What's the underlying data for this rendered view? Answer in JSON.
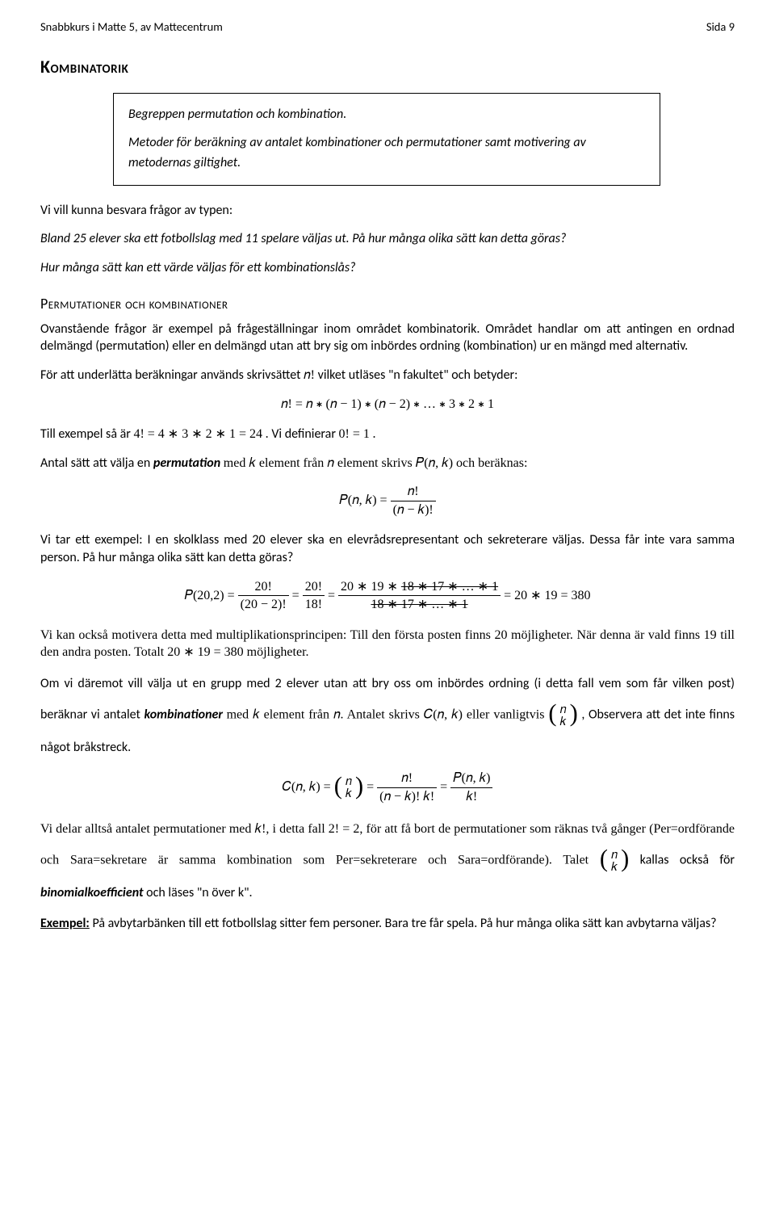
{
  "header": {
    "left": "Snabbkurs i Matte 5, av Mattecentrum",
    "right": "Sida 9"
  },
  "title": "Kombinatorik",
  "box": {
    "line1": "Begreppen permutation och kombination.",
    "line2": "Metoder för beräkning av antalet kombinationer och permutationer samt motivering av metodernas giltighet."
  },
  "intro1": "Vi vill kunna besvara frågor av typen:",
  "intro2": "Bland 25 elever ska ett fotbollslag med 11 spelare väljas ut. På hur många olika sätt kan detta göras?",
  "intro3": "Hur många sätt kan ett värde väljas för ett kombinationslås?",
  "h2": "Permutationer och kombinationer",
  "p1": "Ovanstående frågor är exempel på frågeställningar inom området kombinatorik. Området handlar om att antingen en ordnad delmängd (permutation) eller en delmängd utan att bry sig om inbördes ordning (kombination) ur en mängd med alternativ.",
  "p2a": "För att underlätta beräkningar används skrivsättet ",
  "p2b": " vilket utläses \"n fakultet\" och betyder:",
  "eq1": "𝑛! = 𝑛 ∗ (𝑛 − 1) ∗ (𝑛 − 2) ∗ … ∗ 3 ∗ 2 ∗ 1",
  "p3a": "Till exempel så är ",
  "p3b": ". Vi definierar ",
  "p3c": ".",
  "ex_4fac": "4! = 4 ∗ 3 ∗ 2 ∗ 1 = 24",
  "ex_0fac": "0! = 1",
  "p4a": "Antal sätt att välja en ",
  "p4_perm": "permutation",
  "p4b": " med 𝑘 element från 𝑛 element skrivs 𝑃(𝑛, 𝑘) och beräknas:",
  "eq2_lhs": "𝑃(𝑛, 𝑘) = ",
  "eq2_num": "𝑛!",
  "eq2_den": "(𝑛 − 𝑘)!",
  "p5": "Vi tar ett exempel: I en skolklass med 20 elever ska en elevrådsrepresentant och sekreterare väljas. Dessa får inte vara samma person. På hur många olika sätt kan detta göras?",
  "eq3": {
    "lhs": "𝑃(20,2) = ",
    "f1_num": "20!",
    "f1_den": "(20 − 2)!",
    "f2_num": "20!",
    "f2_den": "18!",
    "f3_num_a": "20 ∗ 19 ∗ ",
    "f3_num_b": "18 ∗ 17 ∗ … ∗ 1",
    "f3_den": "18 ∗ 17 ∗ … ∗ 1",
    "rhs": " = 20 ∗ 19 = 380"
  },
  "p6": "Vi kan också motivera detta med multiplikationsprincipen: Till den första posten finns 20 möjligheter. När denna är vald finns 19 till den andra posten. Totalt 20 ∗ 19 = 380 möjligheter.",
  "p7a": "Om vi däremot vill välja ut en grupp med 2 elever utan att bry oss om inbördes ordning (i detta fall vem som får vilken post) beräknar vi antalet ",
  "p7_comb": "kombinationer",
  "p7b": " med 𝑘 element från 𝑛. Antalet skrivs 𝐶(𝑛, 𝑘) eller vanligtvis ",
  "p7c": ", Observera att det inte finns något bråkstreck.",
  "eq4": {
    "lhs": "𝐶(𝑛, 𝑘) = ",
    "binom_n": "𝑛",
    "binom_k": "𝑘",
    "f1_num": "𝑛!",
    "f1_den": "(𝑛 − 𝑘)! 𝑘!",
    "f2_num": "𝑃(𝑛, 𝑘)",
    "f2_den": "𝑘!"
  },
  "p8a": "Vi delar alltså antalet permutationer med 𝑘!, i detta fall 2! = 2, för att få bort de permutationer som räknas två gånger (Per=ordförande och Sara=sekretare är samma kombination som Per=sekreterare och Sara=ordförande). Talet ",
  "p8b": " kallas också för ",
  "p8_binom": "binomialkoefficient",
  "p8c": " och läses \"n över k\".",
  "ex_label": "Exempel:",
  "ex_text": " På avbytarbänken till ett fotbollslag sitter fem personer. Bara tre får spela. På hur många olika sätt kan avbytarna väljas?",
  "n": "𝑛",
  "k": "𝑘",
  "n_excl": "𝑛!"
}
